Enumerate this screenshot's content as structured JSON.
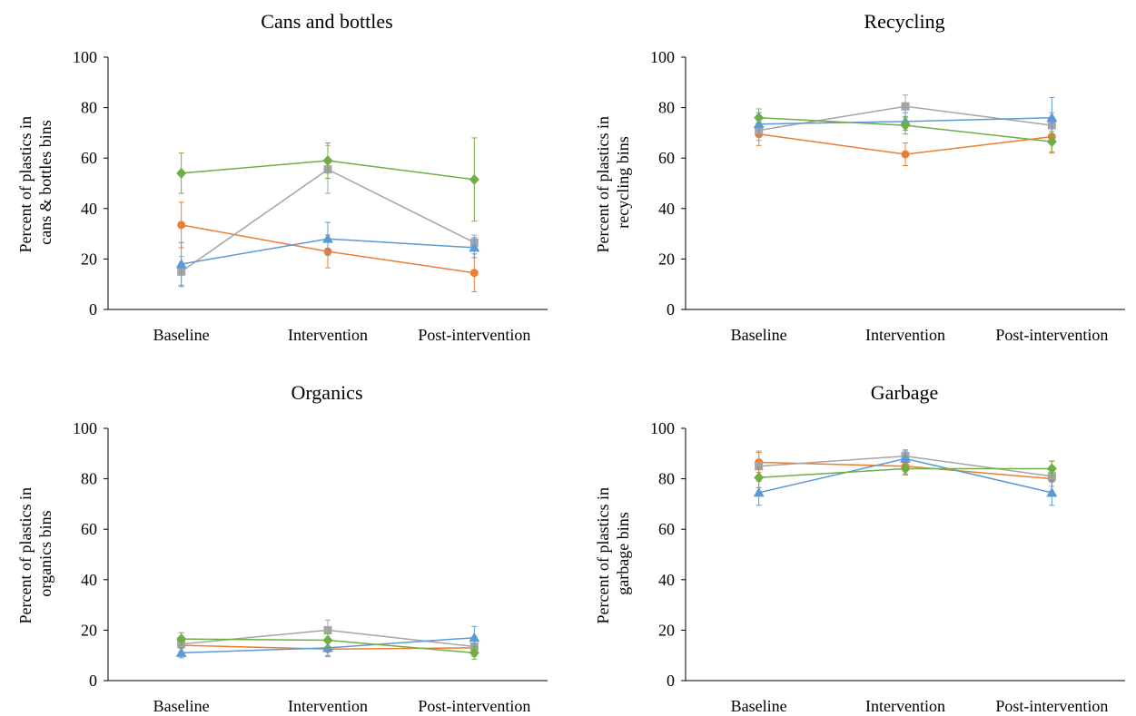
{
  "series_colors": [
    "#ED7D31",
    "#A5A5A5",
    "#5B9BD5",
    "#70AD47"
  ],
  "series_markers": [
    "circle",
    "square",
    "triangle",
    "diamond"
  ],
  "chart_data": [
    {
      "type": "line",
      "title": "Cans and bottles",
      "ylabel": [
        "Percent of plastics in",
        "cans & bottles bins"
      ],
      "categories": [
        "Baseline",
        "Intervention",
        "Post-intervention"
      ],
      "ylim": [
        0,
        100
      ],
      "yticks": [
        "0",
        "20",
        "40",
        "60",
        "80",
        "100"
      ],
      "series": [
        {
          "values": [
            33.5,
            23,
            14.5
          ],
          "err": [
            9,
            6.5,
            7.5
          ]
        },
        {
          "values": [
            15,
            55.5,
            26.5
          ],
          "err": [
            6,
            9.5,
            3
          ]
        },
        {
          "values": [
            18,
            28,
            24.5
          ],
          "err": [
            8.5,
            6.5,
            4
          ]
        },
        {
          "values": [
            54,
            59,
            51.5
          ],
          "err": [
            8,
            7,
            16.5
          ]
        }
      ]
    },
    {
      "type": "line",
      "title": "Recycling",
      "ylabel": [
        "Percent of plastics in",
        "recycling bins"
      ],
      "categories": [
        "Baseline",
        "Intervention",
        "Post-intervention"
      ],
      "ylim": [
        0,
        100
      ],
      "yticks": [
        "0",
        "20",
        "40",
        "60",
        "80",
        "100"
      ],
      "series": [
        {
          "values": [
            69.5,
            61.5,
            68.5
          ],
          "err": [
            4.5,
            4.5,
            6.5
          ]
        },
        {
          "values": [
            71,
            80.5,
            73
          ],
          "err": [
            4,
            4.5,
            5
          ]
        },
        {
          "values": [
            73.5,
            74.5,
            76
          ],
          "err": [
            4.5,
            3.5,
            8
          ]
        },
        {
          "values": [
            76,
            73,
            66.5
          ],
          "err": [
            3.5,
            3.5,
            4
          ]
        }
      ]
    },
    {
      "type": "line",
      "title": "Organics",
      "ylabel": [
        "Percent of plastics in",
        "organics bins"
      ],
      "categories": [
        "Baseline",
        "Intervention",
        "Post-intervention"
      ],
      "ylim": [
        0,
        100
      ],
      "yticks": [
        "0",
        "20",
        "40",
        "60",
        "80",
        "100"
      ],
      "series": [
        {
          "values": [
            14,
            12.5,
            13
          ],
          "err": [
            3,
            3,
            3
          ]
        },
        {
          "values": [
            14.5,
            20,
            13.5
          ],
          "err": [
            3,
            4,
            4
          ]
        },
        {
          "values": [
            11,
            13,
            17
          ],
          "err": [
            2,
            3,
            4.5
          ]
        },
        {
          "values": [
            16.5,
            16,
            11
          ],
          "err": [
            2.5,
            2.5,
            2.5
          ]
        }
      ]
    },
    {
      "type": "line",
      "title": "Garbage",
      "ylabel": [
        "Percent of plastics in",
        "garbage bins"
      ],
      "categories": [
        "Baseline",
        "Intervention",
        "Post-intervention"
      ],
      "ylim": [
        0,
        100
      ],
      "yticks": [
        "0",
        "20",
        "40",
        "60",
        "80",
        "100"
      ],
      "series": [
        {
          "values": [
            86.5,
            85,
            80
          ],
          "err": [
            4,
            3,
            7
          ]
        },
        {
          "values": [
            85,
            89,
            81
          ],
          "err": [
            6,
            2.5,
            4
          ]
        },
        {
          "values": [
            74.5,
            88,
            74.5
          ],
          "err": [
            5,
            3,
            5
          ]
        },
        {
          "values": [
            80.5,
            84,
            84
          ],
          "err": [
            4,
            2.5,
            3
          ]
        }
      ]
    }
  ]
}
